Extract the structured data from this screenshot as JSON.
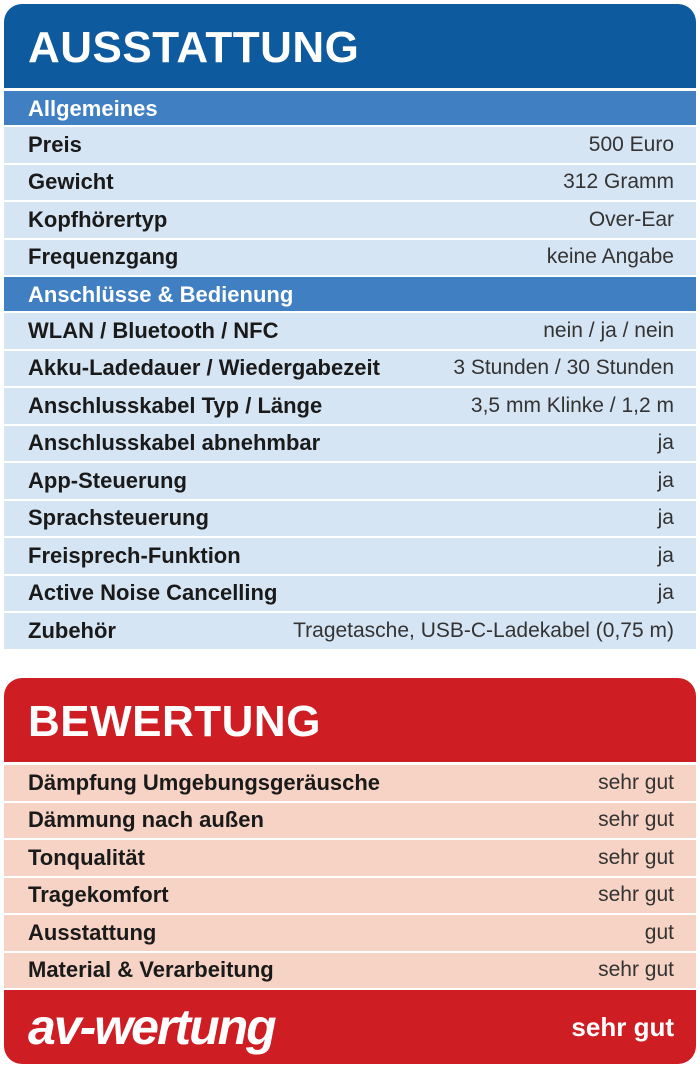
{
  "ausstattung": {
    "title": "AUSSTATTUNG",
    "sections": [
      {
        "title": "Allgemeines",
        "rows": [
          {
            "label": "Preis",
            "value": "500 Euro"
          },
          {
            "label": "Gewicht",
            "value": "312 Gramm"
          },
          {
            "label": "Kopfhörertyp",
            "value": "Over-Ear"
          },
          {
            "label": "Frequenzgang",
            "value": "keine Angabe"
          }
        ]
      },
      {
        "title": "Anschlüsse & Bedienung",
        "rows": [
          {
            "label": "WLAN / Bluetooth / NFC",
            "value": "nein / ja / nein"
          },
          {
            "label": "Akku-Ladedauer / Wiedergabezeit",
            "value": "3 Stunden / 30 Stunden"
          },
          {
            "label": "Anschlusskabel Typ / Länge",
            "value": "3,5 mm Klinke / 1,2 m"
          },
          {
            "label": "Anschlusskabel abnehmbar",
            "value": "ja"
          },
          {
            "label": "App-Steuerung",
            "value": "ja"
          },
          {
            "label": "Sprachsteuerung",
            "value": "ja"
          },
          {
            "label": "Freisprech-Funktion",
            "value": "ja"
          },
          {
            "label": "Active Noise Cancelling",
            "value": "ja"
          },
          {
            "label": "Zubehör",
            "value": "Tragetasche, USB-C-Ladekabel (0,75 m)"
          }
        ]
      }
    ]
  },
  "bewertung": {
    "title": "BEWERTUNG",
    "rows": [
      {
        "label": "Dämpfung Umgebungsgeräusche",
        "value": "sehr gut"
      },
      {
        "label": "Dämmung nach außen",
        "value": "sehr gut"
      },
      {
        "label": "Tonqualität",
        "value": "sehr gut"
      },
      {
        "label": "Tragekomfort",
        "value": "sehr gut"
      },
      {
        "label": "Ausstattung",
        "value": "gut"
      },
      {
        "label": "Material & Verarbeitung",
        "value": "sehr gut"
      }
    ],
    "logo": "av-wertung",
    "verdict": "sehr gut"
  },
  "colors": {
    "blue_header": "#0e5a9e",
    "blue_section": "#3f7fc2",
    "blue_row": "#d6e5f4",
    "red_header": "#cf1d24",
    "red_row": "#f6d3c4"
  }
}
